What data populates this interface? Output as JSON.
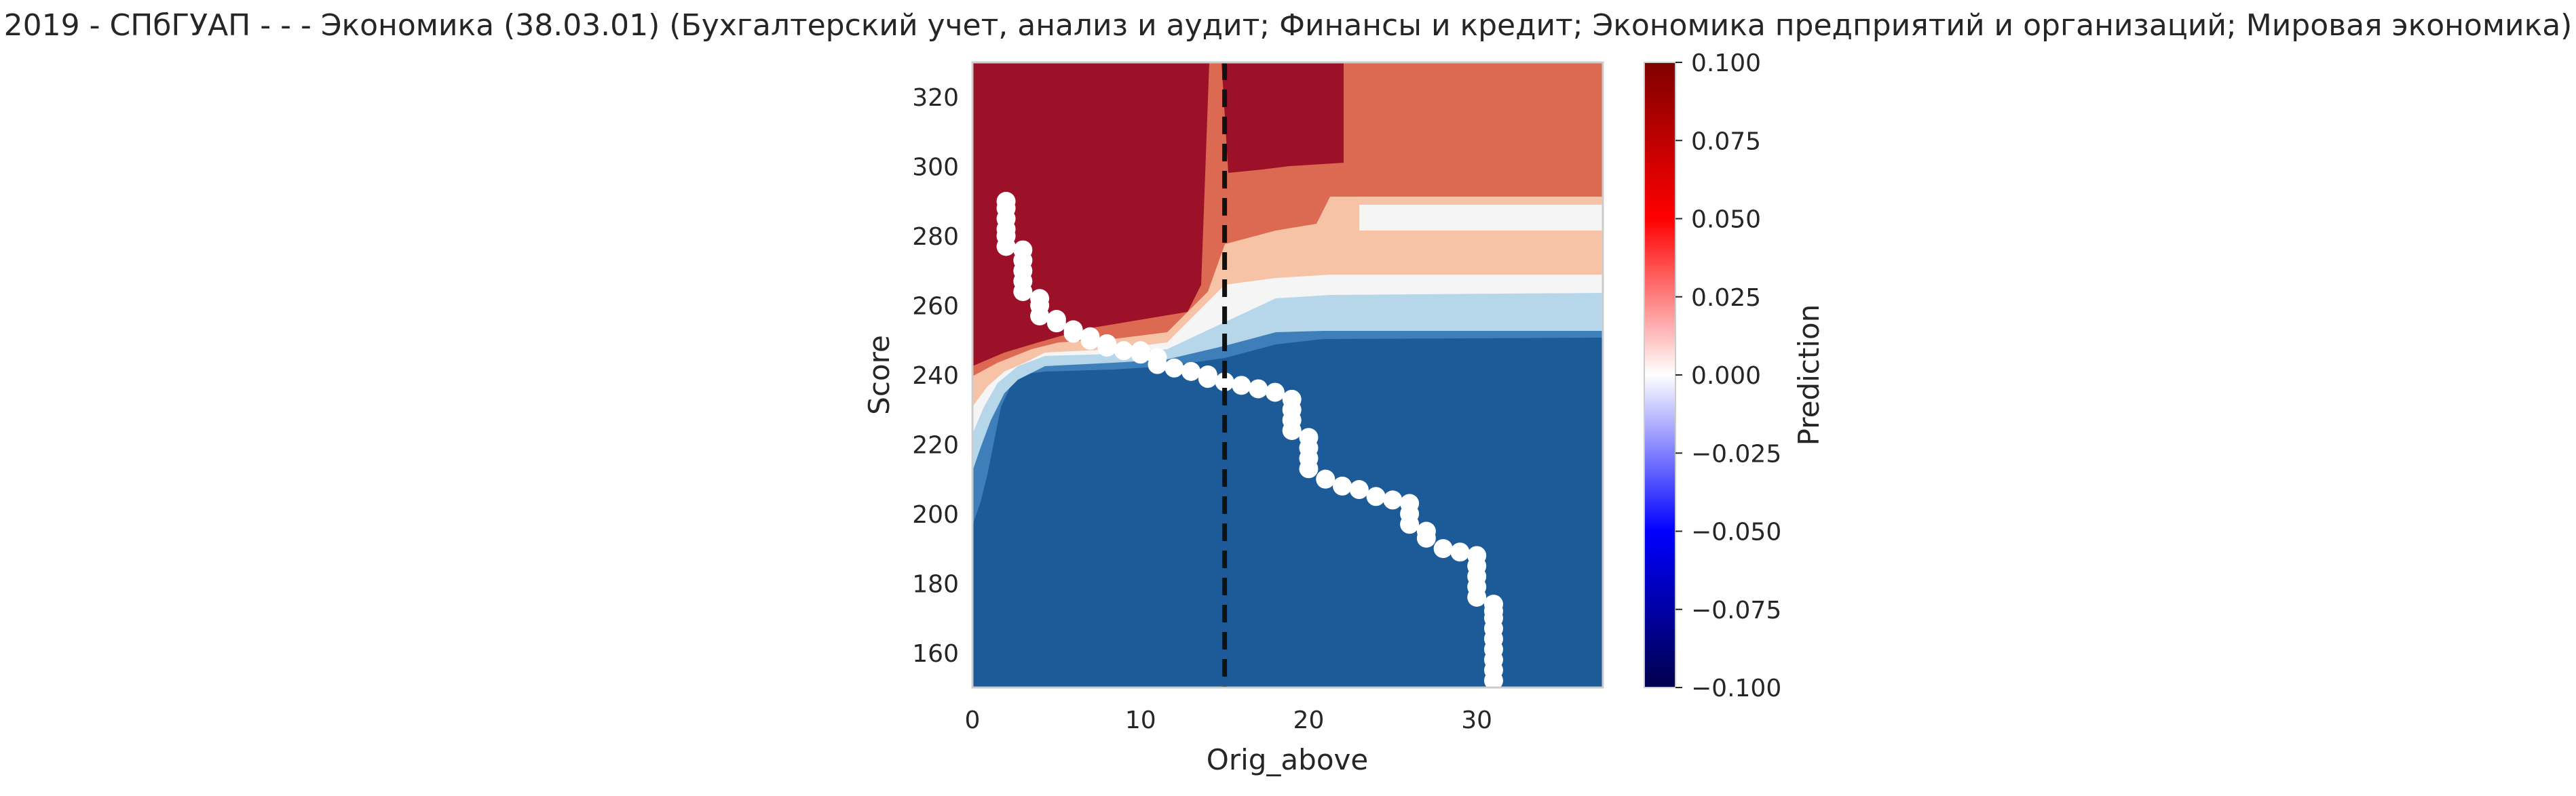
{
  "chart_data": {
    "type": "contour",
    "title": "2019 - СПбГУАП - - - Экономика (38.03.01) (Бухгалтерский учет, анализ и аудит; Финансы и кредит; Экономика предприятий и организаций; Мировая экономика)",
    "xlabel": "Orig_above",
    "ylabel": "Score",
    "xlim": [
      0,
      37.5
    ],
    "ylim": [
      150,
      330
    ],
    "x_ticks": [
      "0",
      "10",
      "20",
      "30"
    ],
    "y_ticks": [
      "160",
      "180",
      "200",
      "220",
      "240",
      "260",
      "280",
      "300",
      "320"
    ],
    "vline_x": 15,
    "vline_style": "dashed",
    "colorbar": {
      "label": "Prediction",
      "cmap": "seismic",
      "min": -0.1,
      "max": 0.1,
      "ticks": [
        "0.100",
        "0.075",
        "0.050",
        "0.025",
        "0.000",
        "−0.025",
        "−0.050",
        "−0.075",
        "−0.100"
      ]
    },
    "contour_colors": {
      "strong_negative": "#1d5a98",
      "negative": "#3e7fba",
      "weak_negative": "#b6d6ea",
      "neutral": "#f5f5f5",
      "weak_positive": "#f7c3a7",
      "positive": "#dc6a52",
      "strong_positive": "#9c1128"
    },
    "scatter_color": "#ffffff",
    "scatter_points": [
      [
        2,
        290
      ],
      [
        2,
        288
      ],
      [
        2,
        285
      ],
      [
        2,
        282
      ],
      [
        2,
        280
      ],
      [
        2,
        277
      ],
      [
        3,
        276
      ],
      [
        3,
        273
      ],
      [
        3,
        270
      ],
      [
        3,
        267
      ],
      [
        3,
        264
      ],
      [
        4,
        262
      ],
      [
        4,
        260
      ],
      [
        4,
        257
      ],
      [
        5,
        256
      ],
      [
        5,
        255
      ],
      [
        6,
        253
      ],
      [
        6,
        252
      ],
      [
        7,
        251
      ],
      [
        7,
        250
      ],
      [
        8,
        249
      ],
      [
        8,
        248
      ],
      [
        9,
        247
      ],
      [
        10,
        247
      ],
      [
        10,
        246
      ],
      [
        11,
        245
      ],
      [
        11,
        243
      ],
      [
        12,
        242
      ],
      [
        13,
        241
      ],
      [
        14,
        240
      ],
      [
        14,
        239
      ],
      [
        15,
        238
      ],
      [
        16,
        237
      ],
      [
        17,
        236
      ],
      [
        18,
        235
      ],
      [
        19,
        233
      ],
      [
        19,
        230
      ],
      [
        19,
        227
      ],
      [
        19,
        224
      ],
      [
        20,
        222
      ],
      [
        20,
        219
      ],
      [
        20,
        216
      ],
      [
        20,
        213
      ],
      [
        21,
        210
      ],
      [
        22,
        208
      ],
      [
        23,
        207
      ],
      [
        24,
        205
      ],
      [
        25,
        204
      ],
      [
        26,
        203
      ],
      [
        26,
        200
      ],
      [
        26,
        197
      ],
      [
        27,
        195
      ],
      [
        27,
        193
      ],
      [
        28,
        190
      ],
      [
        29,
        189
      ],
      [
        30,
        188
      ],
      [
        30,
        185
      ],
      [
        30,
        182
      ],
      [
        30,
        179
      ],
      [
        30,
        176
      ],
      [
        31,
        174
      ],
      [
        31,
        172
      ],
      [
        31,
        170
      ],
      [
        31,
        167
      ],
      [
        31,
        164
      ],
      [
        31,
        161
      ],
      [
        31,
        158
      ],
      [
        31,
        155
      ],
      [
        31,
        152
      ]
    ]
  }
}
